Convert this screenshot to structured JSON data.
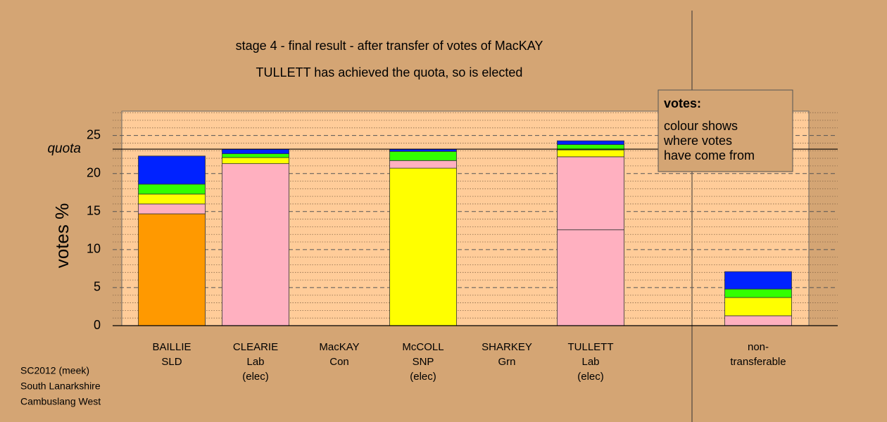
{
  "chart_data": {
    "type": "stacked-bar",
    "title": "stage 4 - final result - after transfer of votes of MacKAY",
    "subtitle": "TULLETT has achieved the quota, so is elected",
    "y_label": "votes %",
    "categories": [
      [
        "BAILLIE",
        "SLD"
      ],
      [
        "CLEARIE",
        "Lab",
        "(elec)"
      ],
      [
        "MacKAY",
        "Con"
      ],
      [
        "McCOLL",
        "SNP",
        "(elec)"
      ],
      [
        "SHARKEY",
        "Grn"
      ],
      [
        "TULLETT",
        "Lab",
        "(elec)"
      ],
      null,
      [
        "non-",
        "transferable"
      ]
    ],
    "stacks": [
      [
        {
          "color": "#ff9900",
          "value": 14.7
        },
        {
          "color": "#ffb0c0",
          "value": 1.3
        },
        {
          "color": "#ffff00",
          "value": 1.3
        },
        {
          "color": "#33ff00",
          "value": 1.3
        },
        {
          "color": "#0022ff",
          "value": 3.7
        }
      ],
      [
        {
          "color": "#ffb0c0",
          "value": 21.3
        },
        {
          "color": "#ffff00",
          "value": 0.8
        },
        {
          "color": "#33ff00",
          "value": 0.5
        },
        {
          "color": "#0022ff",
          "value": 0.6
        }
      ],
      [],
      [
        {
          "color": "#ffff00",
          "value": 20.7
        },
        {
          "color": "#ffb0c0",
          "value": 1.0
        },
        {
          "color": "#33ff00",
          "value": 1.2
        },
        {
          "color": "#0022ff",
          "value": 0.3
        }
      ],
      [],
      [
        {
          "color": "#ffb0c0",
          "value": 12.6
        },
        {
          "color": "#ffb0c0",
          "value": 9.6
        },
        {
          "color": "#ffff00",
          "value": 0.9
        },
        {
          "color": "#33ff00",
          "value": 0.7
        },
        {
          "color": "#0022ff",
          "value": 0.5
        }
      ],
      [],
      [
        {
          "color": "#ffb0c0",
          "value": 1.3
        },
        {
          "color": "#ffff00",
          "value": 2.4
        },
        {
          "color": "#33ff00",
          "value": 1.1
        },
        {
          "color": "#0022ff",
          "value": 2.3
        }
      ]
    ],
    "ylim": [
      0,
      28.2
    ],
    "yticks": [
      0,
      5,
      10,
      15,
      20,
      25
    ],
    "minor_yticks": [
      1,
      2,
      3,
      4,
      6,
      7,
      8,
      9,
      11,
      12,
      13,
      14,
      16,
      17,
      18,
      19,
      21,
      22,
      23,
      24,
      26,
      27,
      28
    ],
    "quota": {
      "value": 23.2,
      "label": "quota"
    },
    "legend_note": {
      "heading": "votes:",
      "lines": [
        "colour shows",
        "where votes",
        "have come from"
      ]
    },
    "footer": [
      "SC2012 (meek)",
      "South Lanarkshire",
      "Cambuslang West"
    ]
  }
}
